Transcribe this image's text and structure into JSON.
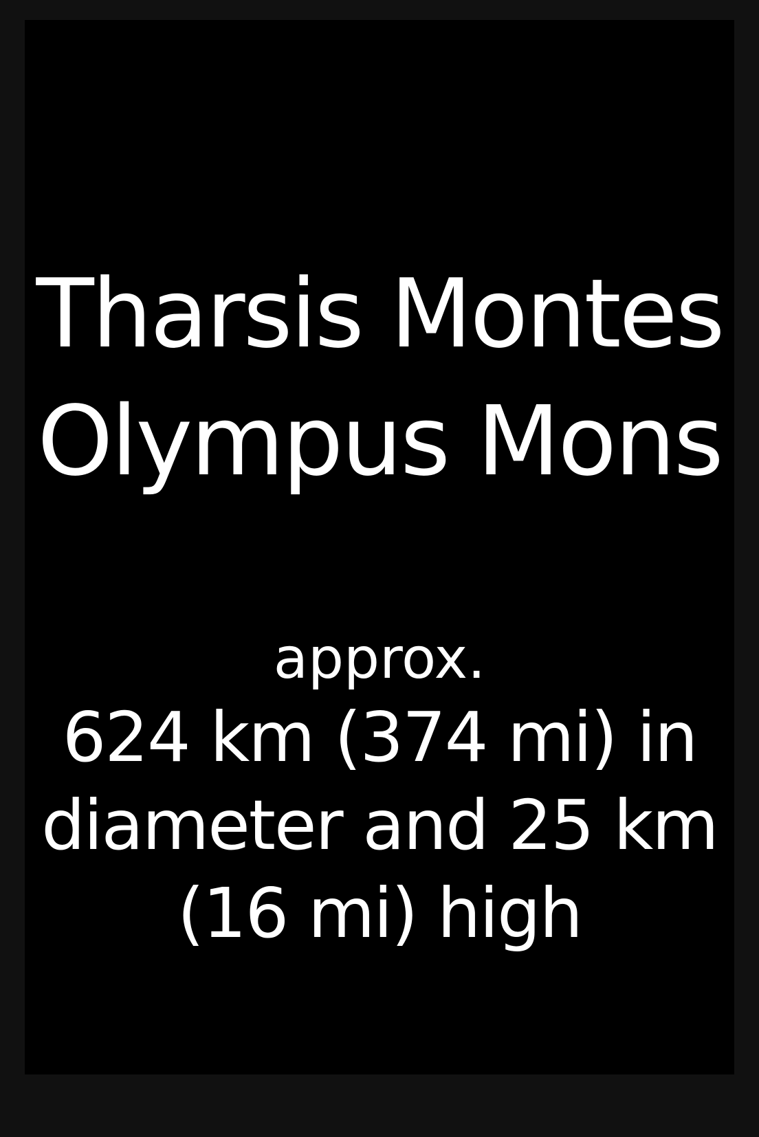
{
  "heading": {
    "line1": "Tharsis Montes",
    "line2": "Olympus Mons"
  },
  "details": {
    "approx": "approx.",
    "lines": [
      "624 km (374 mi) in",
      "diameter and 25 km",
      "(16 mi) high"
    ]
  }
}
